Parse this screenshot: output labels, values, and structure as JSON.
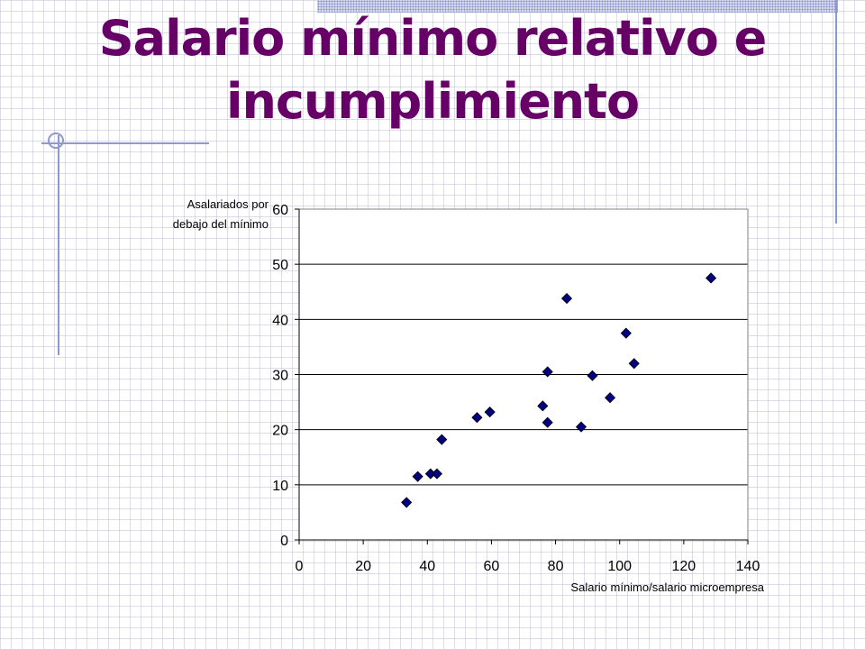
{
  "slide": {
    "title_line1": "Salario mínimo relativo e",
    "title_line2": "incumplimiento",
    "title_color": "#660066"
  },
  "chart_data": {
    "type": "scatter",
    "title": "",
    "xlabel": "Salario mínimo/salario microempresa",
    "ylabel_line1": "Asalariados por",
    "ylabel_line2": "debajo del mínimo",
    "xlim": [
      0,
      140
    ],
    "ylim": [
      0,
      60
    ],
    "x_ticks": [
      0,
      20,
      40,
      60,
      80,
      100,
      120,
      140
    ],
    "y_ticks": [
      0,
      10,
      20,
      30,
      40,
      50,
      60
    ],
    "grid": "horizontal",
    "legend": "none",
    "marker": "diamond",
    "marker_color": "#000080",
    "points": [
      {
        "x": 33.5,
        "y": 6.8
      },
      {
        "x": 37,
        "y": 11.5
      },
      {
        "x": 41,
        "y": 12
      },
      {
        "x": 43,
        "y": 12
      },
      {
        "x": 44.5,
        "y": 18.2
      },
      {
        "x": 55.5,
        "y": 22.2
      },
      {
        "x": 59.5,
        "y": 23.2
      },
      {
        "x": 76,
        "y": 24.3
      },
      {
        "x": 77.5,
        "y": 30.5
      },
      {
        "x": 77.5,
        "y": 21.3
      },
      {
        "x": 83.5,
        "y": 43.8
      },
      {
        "x": 88,
        "y": 20.5
      },
      {
        "x": 91.5,
        "y": 29.8
      },
      {
        "x": 97,
        "y": 25.8
      },
      {
        "x": 102,
        "y": 37.5
      },
      {
        "x": 104.5,
        "y": 32
      },
      {
        "x": 128.5,
        "y": 47.5
      }
    ]
  }
}
